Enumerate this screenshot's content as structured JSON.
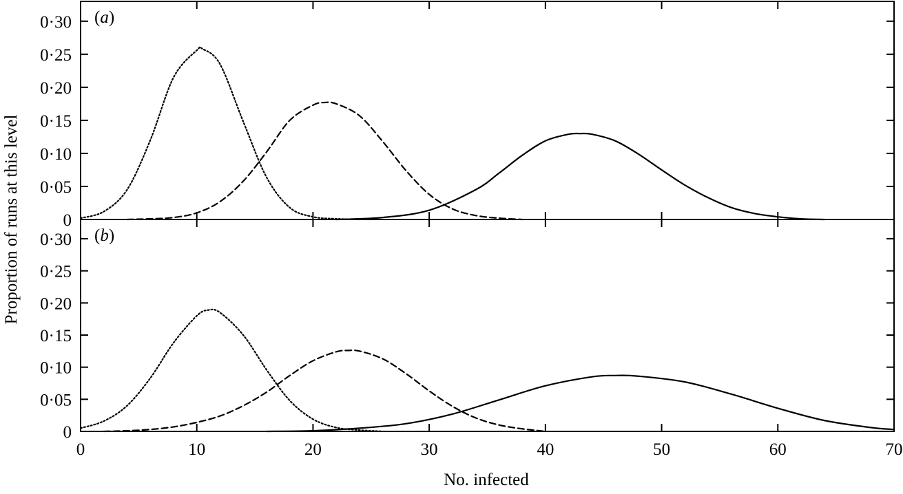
{
  "chart_data": {
    "type": "line",
    "xlabel": "No. infected",
    "ylabel": "Proportion of runs at this level",
    "xlim": [
      0,
      70
    ],
    "ylim": [
      0,
      0.33
    ],
    "x_ticks": [
      0,
      10,
      20,
      30,
      40,
      50,
      60,
      70
    ],
    "x_tick_labels": [
      "0",
      "10",
      "20",
      "30",
      "40",
      "50",
      "60",
      "70"
    ],
    "y_ticks": [
      0,
      0.05,
      0.1,
      0.15,
      0.2,
      0.25,
      0.3
    ],
    "y_tick_labels": [
      "0",
      "0·05",
      "0·10",
      "0·15",
      "0·20",
      "0·25",
      "0·30"
    ],
    "grid": false,
    "panels": [
      {
        "label": "(a)",
        "label_parts": {
          "open": "(",
          "letter": "a",
          "close": ")"
        },
        "series": [
          {
            "style": "dotted",
            "x": [
              0,
              2,
              4,
              6,
              8,
              10,
              10.5,
              12,
              14,
              16,
              18,
              20,
              22,
              24
            ],
            "y": [
              0.002,
              0.012,
              0.045,
              0.12,
              0.215,
              0.256,
              0.258,
              0.235,
              0.148,
              0.064,
              0.018,
              0.004,
              0.001,
              0
            ]
          },
          {
            "style": "dashed",
            "x": [
              4,
              6,
              8,
              10,
              12,
              14,
              16,
              18,
              20,
              21,
              22,
              24,
              26,
              28,
              30,
              32,
              34,
              36,
              38
            ],
            "y": [
              0,
              0.001,
              0.003,
              0.01,
              0.027,
              0.058,
              0.102,
              0.15,
              0.173,
              0.177,
              0.175,
              0.157,
              0.118,
              0.074,
              0.038,
              0.016,
              0.006,
              0.002,
              0
            ]
          },
          {
            "style": "solid",
            "x": [
              22,
              26,
              30,
              34,
              36,
              38,
              40,
              42,
              43,
              44,
              46,
              48,
              50,
              52,
              54,
              56,
              58,
              60,
              62,
              64
            ],
            "y": [
              0,
              0.003,
              0.014,
              0.045,
              0.07,
              0.097,
              0.119,
              0.129,
              0.13,
              0.129,
              0.119,
              0.099,
              0.075,
              0.052,
              0.033,
              0.018,
              0.009,
              0.004,
              0.001,
              0
            ]
          }
        ]
      },
      {
        "label": "(b)",
        "label_parts": {
          "open": "(",
          "letter": "b",
          "close": ")"
        },
        "series": [
          {
            "style": "dotted",
            "x": [
              0,
              2,
              4,
              6,
              8,
              10,
              11,
              12,
              14,
              16,
              18,
              20,
              22,
              24,
              26
            ],
            "y": [
              0.005,
              0.016,
              0.04,
              0.083,
              0.138,
              0.18,
              0.189,
              0.185,
              0.15,
              0.096,
              0.048,
              0.019,
              0.006,
              0.002,
              0
            ]
          },
          {
            "style": "dashed",
            "x": [
              2,
              4,
              6,
              8,
              10,
              12,
              14,
              16,
              18,
              20,
              22,
              23,
              24,
              26,
              28,
              30,
              32,
              34,
              36,
              38,
              40
            ],
            "y": [
              0,
              0.001,
              0.003,
              0.007,
              0.014,
              0.024,
              0.04,
              0.061,
              0.087,
              0.11,
              0.124,
              0.126,
              0.125,
              0.113,
              0.09,
              0.063,
              0.039,
              0.021,
              0.01,
              0.004,
              0
            ]
          },
          {
            "style": "solid",
            "x": [
              16,
              20,
              24,
              28,
              32,
              36,
              40,
              44,
              46,
              48,
              52,
              56,
              60,
              64,
              68,
              70
            ],
            "y": [
              0,
              0.001,
              0.005,
              0.012,
              0.027,
              0.049,
              0.071,
              0.085,
              0.087,
              0.086,
              0.077,
              0.058,
              0.036,
              0.017,
              0.006,
              0.003
            ]
          }
        ]
      }
    ]
  }
}
